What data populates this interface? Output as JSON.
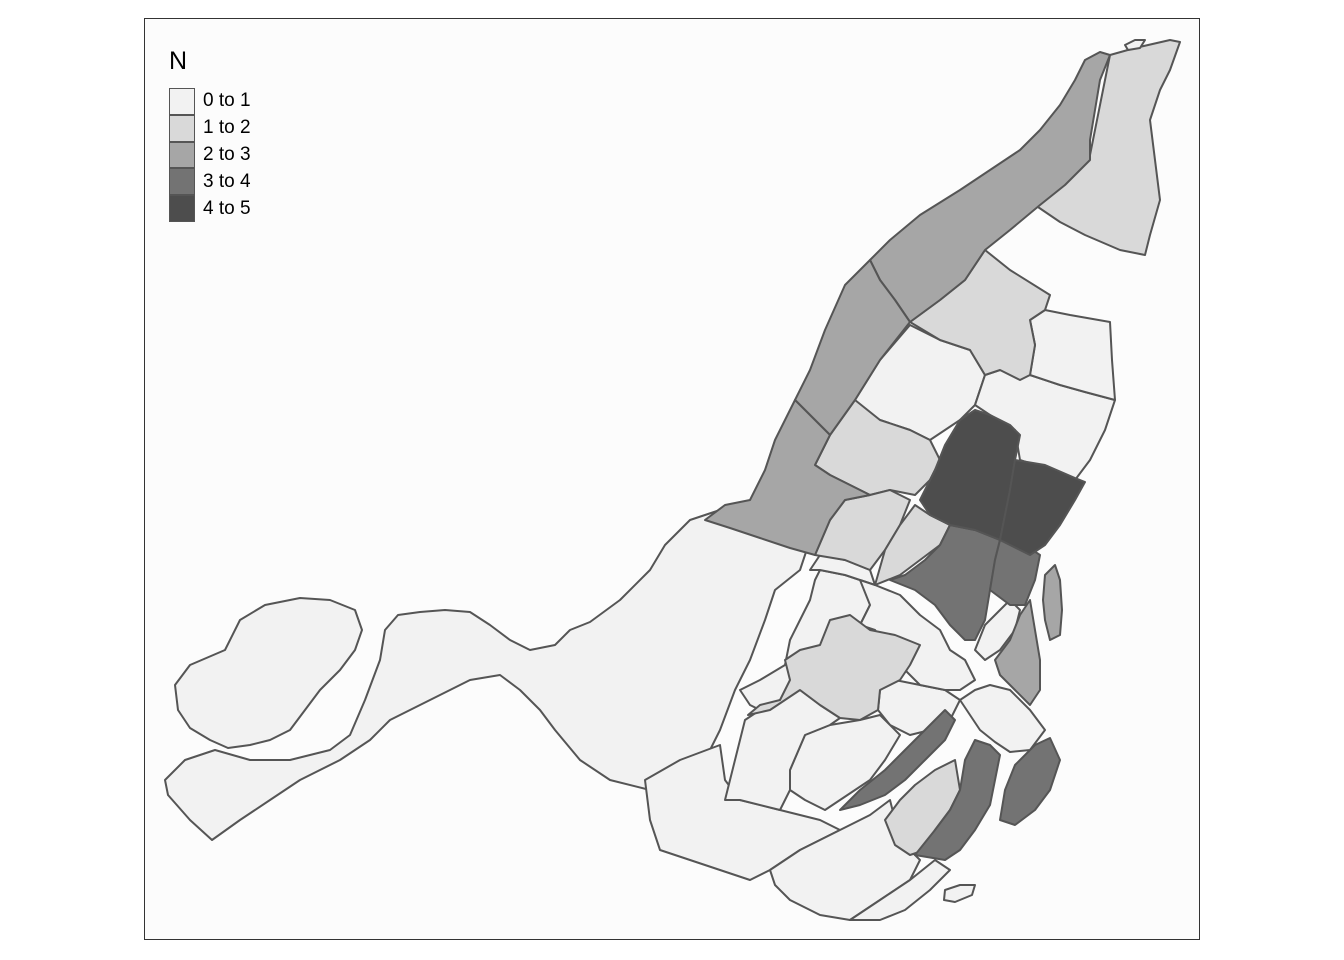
{
  "legend": {
    "title": "N",
    "classes": [
      {
        "label": "0 to 1",
        "color": "#f2f2f2"
      },
      {
        "label": "1 to 2",
        "color": "#d9d9d9"
      },
      {
        "label": "2 to 3",
        "color": "#a6a6a6"
      },
      {
        "label": "3 to 4",
        "color": "#737373"
      },
      {
        "label": "4 to 5",
        "color": "#4d4d4d"
      }
    ]
  },
  "colors": {
    "background": "#fcfcfc",
    "frame": "#333333",
    "border": "#555555"
  },
  "map": {
    "type": "choropleth",
    "value_variable": "N",
    "region_classes": [
      "0 to 1",
      "1 to 2",
      "2 to 3",
      "3 to 4",
      "4 to 5"
    ]
  }
}
